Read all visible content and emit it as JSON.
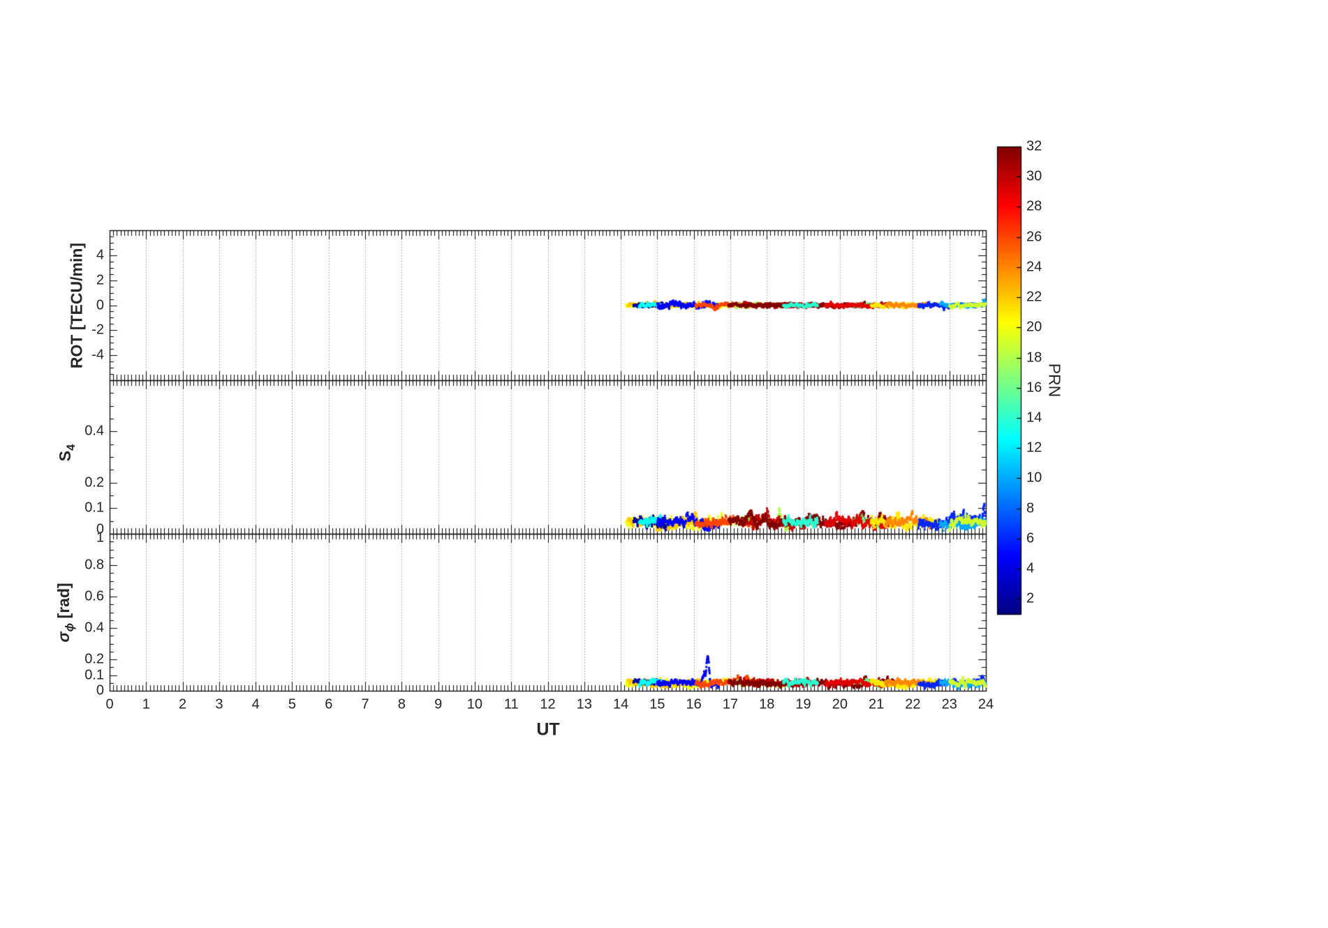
{
  "figure": {
    "background": "#ffffff"
  },
  "x_axis": {
    "label": "UT",
    "min": 0,
    "max": 24,
    "ticks": [
      0,
      1,
      2,
      3,
      4,
      5,
      6,
      7,
      8,
      9,
      10,
      11,
      12,
      13,
      14,
      15,
      16,
      17,
      18,
      19,
      20,
      21,
      22,
      23,
      24
    ],
    "minor_step": 0.1,
    "grid": "dotted-vertical"
  },
  "colorbar": {
    "label": "PRN",
    "min": 1,
    "max": 32,
    "ticks": [
      2,
      4,
      6,
      8,
      10,
      12,
      14,
      16,
      18,
      20,
      22,
      24,
      26,
      28,
      30,
      32
    ],
    "colormap": "jet"
  },
  "chart_data": [
    {
      "type": "scatter",
      "id": "rot",
      "ylabel": "ROT [TECU/min]",
      "ylim": [
        -6,
        6
      ],
      "yticks": [
        -4,
        -2,
        0,
        2,
        4
      ],
      "y_minor": 0.5,
      "xlim": [
        0,
        24
      ],
      "grid": "dotted-vertical",
      "measure": "rot",
      "data_time_span": [
        14.15,
        24
      ],
      "typical_value": 0,
      "typical_spread": 0.2
    },
    {
      "type": "scatter",
      "id": "s4",
      "ylabel": "S_4",
      "ylabel_main": "S",
      "ylabel_sub": "4",
      "ylim": [
        0,
        0.6
      ],
      "yticks": [
        0,
        0.1,
        0.2,
        0.4
      ],
      "y_minor": 0.05,
      "xlim": [
        0,
        24
      ],
      "grid": "dotted-vertical",
      "measure": "s4",
      "data_time_span": [
        14.15,
        24
      ],
      "typical_value": 0.045,
      "max_value": 0.12
    },
    {
      "type": "scatter",
      "id": "sigma_phi",
      "ylabel": "sigma_phi [rad]",
      "ylabel_main": "σ",
      "ylabel_sub": "ϕ",
      "ylabel_unit": " [rad]",
      "ylim": [
        0,
        1
      ],
      "yticks": [
        0,
        0.1,
        0.2,
        0.4,
        0.6,
        0.8,
        1
      ],
      "y_minor": 0.05,
      "xlim": [
        0,
        24
      ],
      "grid": "dotted-vertical",
      "measure": "sg",
      "data_time_span": [
        14.15,
        24
      ],
      "typical_value": 0.05,
      "max_value": 0.27
    }
  ],
  "tracks": [
    {
      "prn": 20,
      "t0": 14.15,
      "t1": 17.05
    },
    {
      "prn": 22,
      "t0": 14.2,
      "t1": 16.3,
      "events": [
        {
          "m": "s4",
          "t": 16.05,
          "w": 0.06,
          "a": 0.02
        }
      ]
    },
    {
      "prn": 2,
      "t0": 14.35,
      "t1": 15.25
    },
    {
      "prn": 13,
      "t0": 14.5,
      "t1": 15.1
    },
    {
      "prn": 5,
      "t0": 15.0,
      "t1": 16.7,
      "rot_sd": 0.16,
      "events": [
        {
          "m": "sg",
          "t": 16.38,
          "w": 0.05,
          "a": 0.17
        },
        {
          "m": "sg",
          "t": 16.28,
          "w": 0.04,
          "a": 0.06
        },
        {
          "m": "s4",
          "t": 16.0,
          "w": 0.08,
          "a": 0.015
        }
      ]
    },
    {
      "prn": 26,
      "t0": 16.05,
      "t1": 17.75,
      "events": [
        {
          "m": "rot",
          "t": 16.6,
          "w": 0.12,
          "a": -0.22
        },
        {
          "m": "sg",
          "t": 17.45,
          "w": 0.09,
          "a": 0.045
        },
        {
          "m": "sg",
          "t": 17.2,
          "w": 0.05,
          "a": 0.03
        }
      ]
    },
    {
      "prn": 18,
      "t0": 17.15,
      "t1": 18.6,
      "events": [
        {
          "m": "s4",
          "t": 18.35,
          "w": 0.05,
          "a": 0.045
        },
        {
          "m": "s4",
          "t": 17.9,
          "w": 0.06,
          "a": 0.02
        }
      ]
    },
    {
      "prn": 30,
      "t0": 17.35,
      "t1": 19.45,
      "events": [
        {
          "m": "s4",
          "t": 18.0,
          "w": 0.08,
          "a": 0.03
        }
      ]
    },
    {
      "prn": 32,
      "t0": 16.95,
      "t1": 21.5,
      "events": [
        {
          "m": "s4",
          "t": 17.55,
          "w": 0.1,
          "a": 0.035
        },
        {
          "m": "s4",
          "t": 17.95,
          "w": 0.09,
          "a": 0.03
        },
        {
          "m": "s4",
          "t": 19.2,
          "w": 0.12,
          "a": 0.02
        },
        {
          "m": "s4",
          "t": 20.6,
          "w": 0.1,
          "a": 0.025
        },
        {
          "m": "sg",
          "t": 20.7,
          "w": 0.07,
          "a": 0.035
        },
        {
          "m": "s4",
          "t": 21.1,
          "w": 0.08,
          "a": 0.02
        }
      ]
    },
    {
      "prn": 14,
      "t0": 18.45,
      "t1": 19.4
    },
    {
      "prn": 16,
      "t0": 20.35,
      "t1": 21.15
    },
    {
      "prn": 29,
      "t0": 19.6,
      "t1": 21.4,
      "events": [
        {
          "m": "s4",
          "t": 19.95,
          "w": 0.1,
          "a": 0.02
        }
      ]
    },
    {
      "prn": 21,
      "t0": 20.85,
      "t1": 22.75,
      "events": [
        {
          "m": "s4",
          "t": 21.6,
          "w": 0.07,
          "a": 0.03
        },
        {
          "m": "s4",
          "t": 22.3,
          "w": 0.06,
          "a": 0.025
        }
      ]
    },
    {
      "prn": 24,
      "t0": 21.25,
      "t1": 22.5,
      "events": [
        {
          "m": "s4",
          "t": 21.95,
          "w": 0.08,
          "a": 0.02
        }
      ]
    },
    {
      "prn": 6,
      "t0": 22.15,
      "t1": 24.0,
      "events": [
        {
          "m": "s4",
          "t": 23.1,
          "w": 0.12,
          "a": 0.03
        },
        {
          "m": "s4",
          "t": 23.4,
          "w": 0.09,
          "a": 0.035
        },
        {
          "m": "s4",
          "t": 23.95,
          "w": 0.04,
          "a": 0.07
        },
        {
          "m": "sg",
          "t": 23.1,
          "w": 0.15,
          "a": 0.02
        },
        {
          "m": "sg",
          "t": 23.9,
          "w": 0.05,
          "a": 0.03
        }
      ]
    },
    {
      "prn": 10,
      "t0": 22.75,
      "t1": 24.0,
      "events": [
        {
          "m": "rot",
          "t": 23.95,
          "w": 0.04,
          "a": 0.35
        }
      ]
    },
    {
      "prn": 19,
      "t0": 23.0,
      "t1": 24.0
    }
  ],
  "defaults": {
    "rot": {
      "mean": 0,
      "sd": 0.1
    },
    "s4": {
      "mean": 0.042,
      "sd": 0.011
    },
    "sg": {
      "mean": 0.048,
      "sd": 0.012
    }
  },
  "style": {
    "axis_color": "#000000",
    "tick_label_color": "#262626",
    "grid_color": "#9a9a9a",
    "background": "#ffffff"
  }
}
